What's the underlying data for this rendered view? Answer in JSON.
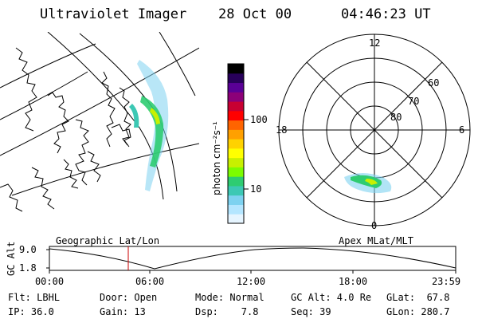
{
  "header": {
    "instrument": "Ultraviolet Imager",
    "date": "28 Oct 00",
    "time": "04:46:23 UT"
  },
  "colorbar": {
    "label": "photon cm⁻²s⁻¹",
    "ticks": [
      "100",
      "10"
    ],
    "colors": [
      "#e6f5ff",
      "#b4e6ff",
      "#7dd2f0",
      "#3cc8b4",
      "#2ecc71",
      "#7cfc00",
      "#c8f000",
      "#ffff00",
      "#ffd200",
      "#ffa000",
      "#ff6400",
      "#ff0000",
      "#c80032",
      "#8c0078",
      "#5a0096",
      "#28005a",
      "#000000"
    ]
  },
  "polar": {
    "mlt_labels": {
      "top": "12",
      "right": "6",
      "bottom": "0",
      "left": "18"
    },
    "lat_labels": [
      "60",
      "70",
      "80"
    ]
  },
  "timeline": {
    "left_label": "Geographic Lat/Lon",
    "right_label": "Apex MLat/MLT",
    "ylabel": "GC Alt",
    "y_ticks": [
      "9.0",
      "1.8"
    ],
    "x_ticks": [
      "00:00",
      "06:00",
      "12:00",
      "18:00",
      "23:59"
    ],
    "marker_color": "#cc0000"
  },
  "info": {
    "filter": "Flt: LBHL",
    "ip": "IP: 36.0",
    "door": "Door: Open",
    "gain": "Gain: 13",
    "mode": "Mode: Normal",
    "dsp": "Dsp:    7.8",
    "gcalt": "GC Alt: 4.0 Re",
    "seq": "Seq: 39",
    "glat": "GLat:  67.8",
    "glon": "GLon: 280.7"
  }
}
